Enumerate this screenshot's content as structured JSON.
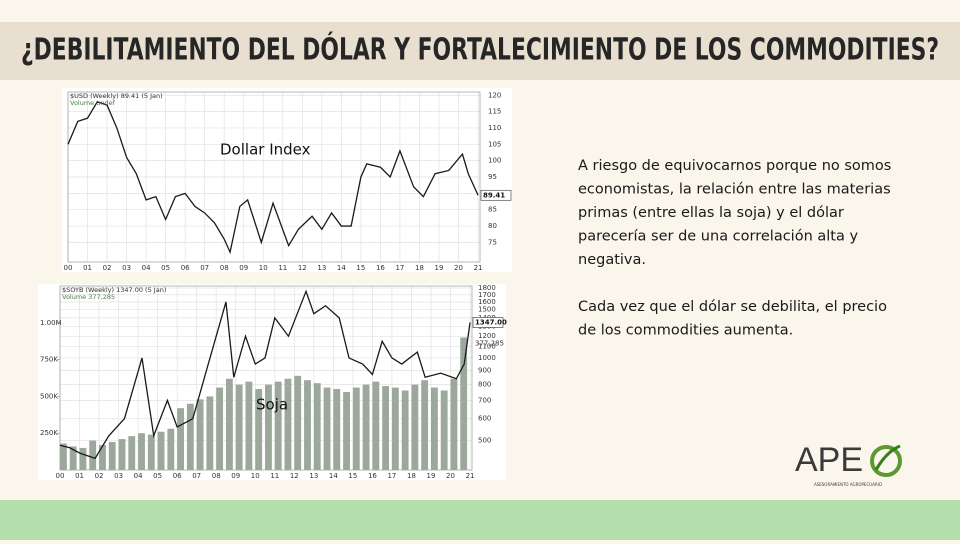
{
  "header": {
    "title": "¿DEBILITAMIENTO DEL DÓLAR Y FORTALECIMIENTO DE LOS COMMODITIES?"
  },
  "body": {
    "paragraphs": [
      {
        "lines": [
          "A riesgo de equivocarnos porque no somos",
          "economistas, la relación entre las materias",
          "primas (entre ellas la soja) y el dólar",
          "parecería ser de una correlación alta y",
          "negativa."
        ]
      },
      {
        "lines": [
          "Cada vez que el dólar se debilita, el precio",
          "de los commodities aumenta."
        ]
      }
    ]
  },
  "logo": {
    "text": "APE",
    "subtitle": "ASESORAMIENTO AGROPECUARIO"
  },
  "chart_data": [
    {
      "type": "line",
      "title": "$USD (Weekly) 89.41 (5 Jan)",
      "volume_label": "Volume undef",
      "annotation": "Dollar Index",
      "last_label": "89.41",
      "xlim": [
        2000,
        2021.1
      ],
      "xticks": [
        {
          "value": 2000,
          "label": "00"
        },
        {
          "value": 2001,
          "label": "01"
        },
        {
          "value": 2002,
          "label": "02"
        },
        {
          "value": 2003,
          "label": "03"
        },
        {
          "value": 2004,
          "label": "04"
        },
        {
          "value": 2005,
          "label": "05"
        },
        {
          "value": 2006,
          "label": "06"
        },
        {
          "value": 2007,
          "label": "07"
        },
        {
          "value": 2008,
          "label": "08"
        },
        {
          "value": 2009,
          "label": "09"
        },
        {
          "value": 2010,
          "label": "10"
        },
        {
          "value": 2011,
          "label": "11"
        },
        {
          "value": 2012,
          "label": "12"
        },
        {
          "value": 2013,
          "label": "13"
        },
        {
          "value": 2014,
          "label": "14"
        },
        {
          "value": 2015,
          "label": "15"
        },
        {
          "value": 2016,
          "label": "16"
        },
        {
          "value": 2017,
          "label": "17"
        },
        {
          "value": 2018,
          "label": "18"
        },
        {
          "value": 2019,
          "label": "19"
        },
        {
          "value": 2020,
          "label": "20"
        },
        {
          "value": 2021,
          "label": "21"
        }
      ],
      "ylim": [
        69,
        121
      ],
      "yticks": [
        75,
        80,
        85,
        90,
        95,
        100,
        105,
        110,
        115,
        120
      ],
      "log": false,
      "grid": true,
      "series": [
        {
          "color": "#1a1a1a",
          "x": [
            2000,
            2000.5,
            2001,
            2001.5,
            2002,
            2002.5,
            2003,
            2003.5,
            2004,
            2004.5,
            2005,
            2005.5,
            2006,
            2006.5,
            2007,
            2007.5,
            2008,
            2008.3,
            2008.8,
            2009.2,
            2009.9,
            2010.5,
            2011.3,
            2011.8,
            2012.5,
            2013,
            2013.5,
            2014,
            2014.5,
            2015,
            2015.3,
            2016,
            2016.5,
            2017,
            2017.7,
            2018.2,
            2018.8,
            2019.5,
            2020.2,
            2020.5,
            2021
          ],
          "values": [
            105,
            112,
            113,
            118,
            117,
            110,
            101,
            96,
            88,
            89,
            82,
            89,
            90,
            86,
            84,
            81,
            76,
            72,
            86,
            88,
            75,
            87,
            74,
            79,
            83,
            79,
            84,
            80,
            80,
            95,
            99,
            98,
            95,
            103,
            92,
            89,
            96,
            97,
            102,
            96,
            89.41
          ]
        }
      ]
    },
    {
      "type": "line",
      "title": "$SOYB (Weekly) 1347.00 (5 Jan)",
      "volume_label": "Volume 377,285",
      "annotation": "Soja",
      "last_label": "1347.00",
      "volume_last_label": "377,285",
      "xlim": [
        2000,
        2021.1
      ],
      "xticks": [
        {
          "value": 2000,
          "label": "00"
        },
        {
          "value": 2001,
          "label": "01"
        },
        {
          "value": 2002,
          "label": "02"
        },
        {
          "value": 2003,
          "label": "03"
        },
        {
          "value": 2004,
          "label": "04"
        },
        {
          "value": 2005,
          "label": "05"
        },
        {
          "value": 2006,
          "label": "06"
        },
        {
          "value": 2007,
          "label": "07"
        },
        {
          "value": 2008,
          "label": "08"
        },
        {
          "value": 2009,
          "label": "09"
        },
        {
          "value": 2010,
          "label": "10"
        },
        {
          "value": 2011,
          "label": "11"
        },
        {
          "value": 2012,
          "label": "12"
        },
        {
          "value": 2013,
          "label": "13"
        },
        {
          "value": 2014,
          "label": "14"
        },
        {
          "value": 2015,
          "label": "15"
        },
        {
          "value": 2016,
          "label": "16"
        },
        {
          "value": 2017,
          "label": "17"
        },
        {
          "value": 2018,
          "label": "18"
        },
        {
          "value": 2019,
          "label": "19"
        },
        {
          "value": 2020,
          "label": "20"
        },
        {
          "value": 2021,
          "label": "21"
        }
      ],
      "ylim": [
        390,
        1830
      ],
      "yticks": [
        500,
        600,
        700,
        800,
        900,
        1000,
        1100,
        1200,
        1300,
        1400,
        1500,
        1600,
        1700,
        1800
      ],
      "log": true,
      "grid": true,
      "y2lim": [
        0,
        1250000
      ],
      "y2ticks": [
        {
          "value": 250000,
          "label": "250K"
        },
        {
          "value": 500000,
          "label": "500K"
        },
        {
          "value": 750000,
          "label": "750K"
        },
        {
          "value": 1000000,
          "label": "1.00M"
        }
      ],
      "series": [
        {
          "type": "bar",
          "axis": "y2",
          "color": "#9ba89b",
          "x": [
            2000,
            2000.5,
            2001,
            2001.5,
            2002,
            2002.5,
            2003,
            2003.5,
            2004,
            2004.5,
            2005,
            2005.5,
            2006,
            2006.5,
            2007,
            2007.5,
            2008,
            2008.5,
            2009,
            2009.5,
            2010,
            2010.5,
            2011,
            2011.5,
            2012,
            2012.5,
            2013,
            2013.5,
            2014,
            2014.5,
            2015,
            2015.5,
            2016,
            2016.5,
            2017,
            2017.5,
            2018,
            2018.5,
            2019,
            2019.5,
            2020,
            2020.5
          ],
          "values": [
            180000,
            160000,
            150000,
            200000,
            170000,
            190000,
            210000,
            230000,
            250000,
            240000,
            260000,
            280000,
            420000,
            450000,
            480000,
            500000,
            560000,
            620000,
            580000,
            600000,
            550000,
            580000,
            600000,
            620000,
            640000,
            610000,
            590000,
            560000,
            550000,
            530000,
            560000,
            580000,
            600000,
            570000,
            560000,
            540000,
            580000,
            610000,
            560000,
            540000,
            620000,
            900000
          ]
        },
        {
          "color": "#1a1a1a",
          "x": [
            2000,
            2000.5,
            2001,
            2001.8,
            2002.5,
            2003.3,
            2004.2,
            2004.8,
            2005.5,
            2006,
            2006.8,
            2007.5,
            2008.5,
            2008.9,
            2009.5,
            2010,
            2010.5,
            2011,
            2011.7,
            2012.6,
            2013,
            2013.6,
            2014.3,
            2014.8,
            2015.5,
            2016,
            2016.5,
            2017,
            2017.5,
            2018.3,
            2018.7,
            2019.5,
            2020.3,
            2020.7,
            2021
          ],
          "values": [
            480,
            470,
            450,
            430,
            520,
            600,
            1000,
            520,
            700,
            560,
            600,
            900,
            1600,
            850,
            1200,
            950,
            1000,
            1400,
            1200,
            1750,
            1450,
            1550,
            1400,
            1000,
            950,
            870,
            1150,
            1000,
            950,
            1050,
            850,
            880,
            840,
            950,
            1347
          ]
        }
      ]
    }
  ]
}
